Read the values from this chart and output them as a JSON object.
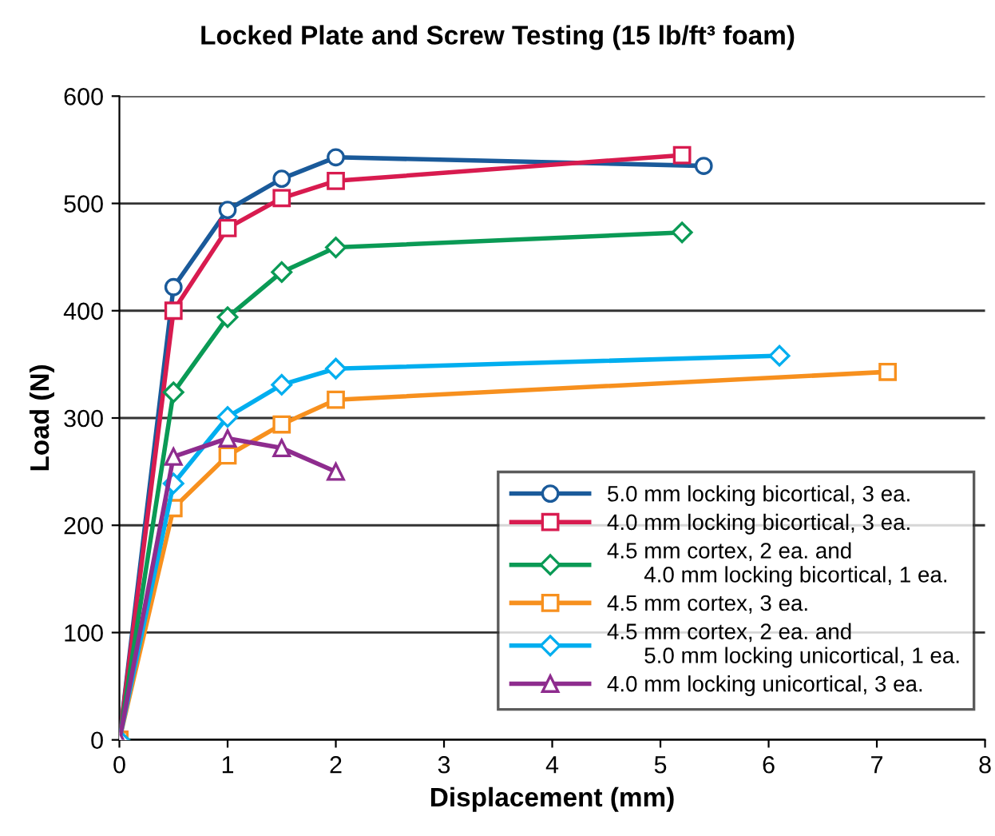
{
  "chart_data": {
    "type": "line",
    "title": "Locked Plate and Screw Testing (15 lb/ft³ foam)",
    "xlabel": "Displacement (mm)",
    "ylabel": "Load (N)",
    "xlim": [
      0,
      8
    ],
    "ylim": [
      0,
      600
    ],
    "xticks": [
      0,
      1,
      2,
      3,
      4,
      5,
      6,
      7,
      8
    ],
    "yticks": [
      0,
      100,
      200,
      300,
      400,
      500,
      600
    ],
    "grid": "y",
    "legend": "bottom right",
    "line_style": "solid",
    "series": [
      {
        "name": "5.0 mm locking bicortical, 3 ea.",
        "color": "#1a5a9a",
        "marker": "circle",
        "x": [
          0,
          0.5,
          1,
          1.5,
          2,
          5.4
        ],
        "values": [
          0,
          422,
          494,
          523,
          543,
          535
        ]
      },
      {
        "name": "4.0 mm locking bicortical, 3 ea.",
        "color": "#d81b4f",
        "marker": "square",
        "x": [
          0,
          0.5,
          1,
          1.5,
          2,
          5.2
        ],
        "values": [
          0,
          400,
          477,
          505,
          521,
          545
        ]
      },
      {
        "name": "4.5 mm cortex, 2 ea. and\n      4.0 mm locking bicortical, 1 ea.",
        "color": "#0a9a55",
        "marker": "diamond",
        "x": [
          0,
          0.5,
          1,
          1.5,
          2,
          5.2
        ],
        "values": [
          0,
          324,
          394,
          436,
          459,
          473
        ]
      },
      {
        "name": "4.5 mm cortex, 3 ea.",
        "color": "#f7901e",
        "marker": "square",
        "x": [
          0,
          0.5,
          1,
          1.5,
          2,
          7.1
        ],
        "values": [
          0,
          216,
          265,
          294,
          317,
          343
        ]
      },
      {
        "name": "4.5 mm cortex, 2 ea. and\n      5.0 mm locking unicortical, 1 ea.",
        "color": "#00aeef",
        "marker": "diamond",
        "x": [
          0,
          0.5,
          1,
          1.5,
          2,
          6.1
        ],
        "values": [
          0,
          239,
          301,
          331,
          346,
          358
        ]
      },
      {
        "name": "4.0 mm locking unicortical, 3 ea.",
        "color": "#8e2c8e",
        "marker": "triangle",
        "x": [
          0,
          0.5,
          1,
          1.5,
          2
        ],
        "values": [
          0,
          264,
          281,
          272,
          250
        ]
      }
    ]
  }
}
